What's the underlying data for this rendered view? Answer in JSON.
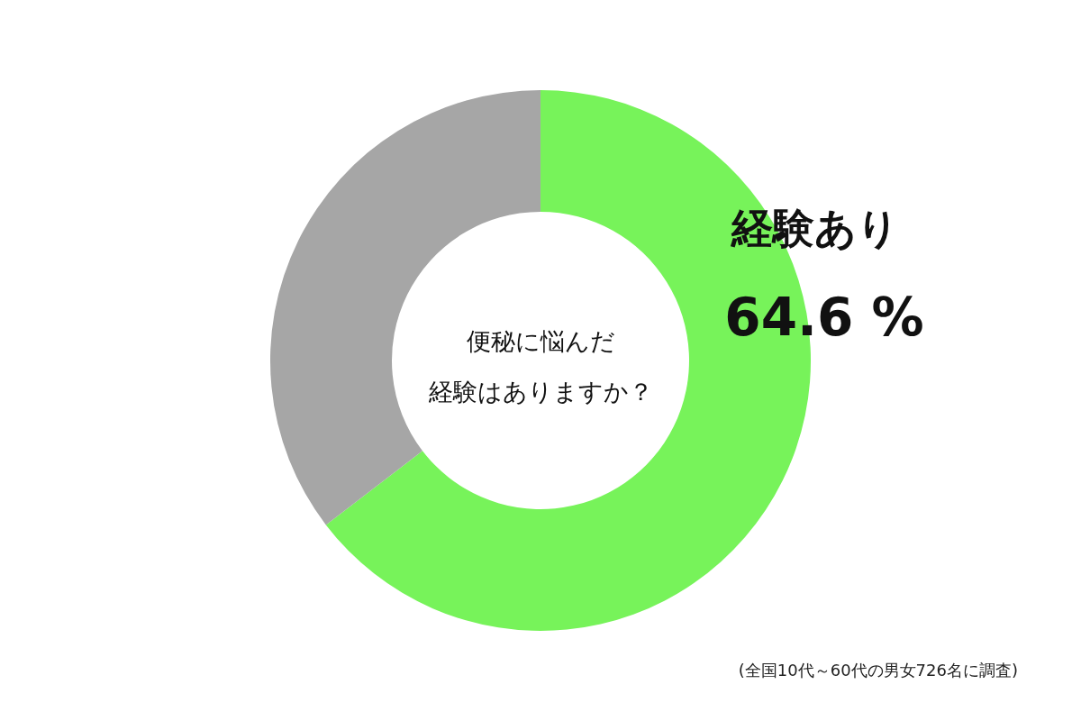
{
  "chart_data": {
    "type": "donut",
    "title": "便秘に悩んだ",
    "subtitle": "経験はありますか？",
    "categories": [
      "経験あり",
      null
    ],
    "values": [
      64.6,
      35.4
    ],
    "colors": [
      "#77f35a",
      "#a6a6a6"
    ],
    "value_labels": [
      "64.6 %",
      null
    ],
    "annotations": [
      "(全国10代～60代の男女726名に調査)"
    ]
  }
}
